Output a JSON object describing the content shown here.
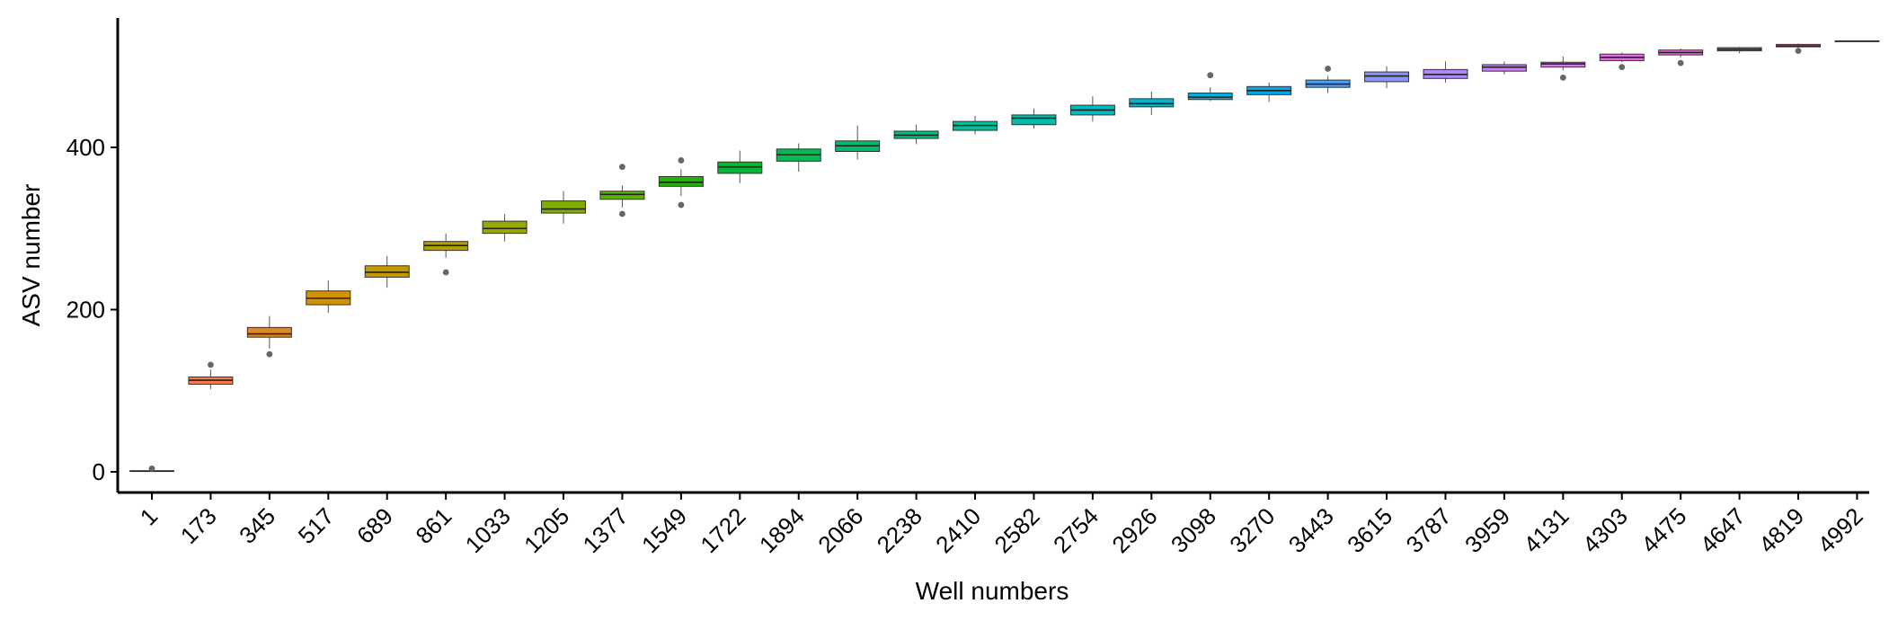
{
  "chart_data": {
    "type": "box",
    "xlabel": "Well numbers",
    "ylabel": "ASV number",
    "y_ticks": [
      0,
      200,
      400
    ],
    "ylim": [
      -25,
      560
    ],
    "grid": false,
    "legend": "none",
    "categories": [
      "1",
      "173",
      "345",
      "517",
      "689",
      "861",
      "1033",
      "1205",
      "1377",
      "1549",
      "1722",
      "1894",
      "2066",
      "2238",
      "2410",
      "2582",
      "2754",
      "2926",
      "3098",
      "3270",
      "3443",
      "3615",
      "3787",
      "3959",
      "4131",
      "4303",
      "4475",
      "4647",
      "4819",
      "4992"
    ],
    "boxes": [
      {
        "min": 1,
        "q1": 1,
        "median": 1,
        "q3": 1,
        "max": 2,
        "outliers": [
          4
        ],
        "color": "#F8766D"
      },
      {
        "min": 102,
        "q1": 108,
        "median": 113,
        "q3": 117,
        "max": 126,
        "outliers": [
          132
        ],
        "color": "#F07F4B"
      },
      {
        "min": 152,
        "q1": 166,
        "median": 170,
        "q3": 178,
        "max": 192,
        "outliers": [
          145
        ],
        "color": "#E2871F"
      },
      {
        "min": 196,
        "q1": 206,
        "median": 214,
        "q3": 223,
        "max": 236,
        "outliers": [],
        "color": "#D39200"
      },
      {
        "min": 227,
        "q1": 240,
        "median": 246,
        "q3": 254,
        "max": 266,
        "outliers": [],
        "color": "#C29A00"
      },
      {
        "min": 264,
        "q1": 273,
        "median": 279,
        "q3": 284,
        "max": 294,
        "outliers": [
          246
        ],
        "color": "#AFA100"
      },
      {
        "min": 284,
        "q1": 294,
        "median": 300,
        "q3": 309,
        "max": 318,
        "outliers": [],
        "color": "#99A800"
      },
      {
        "min": 306,
        "q1": 319,
        "median": 324,
        "q3": 334,
        "max": 346,
        "outliers": [],
        "color": "#7FAE00"
      },
      {
        "min": 326,
        "q1": 336,
        "median": 342,
        "q3": 346,
        "max": 353,
        "outliers": [
          376,
          318
        ],
        "color": "#5EB300"
      },
      {
        "min": 340,
        "q1": 352,
        "median": 357,
        "q3": 364,
        "max": 373,
        "outliers": [
          384,
          329
        ],
        "color": "#1EB600"
      },
      {
        "min": 356,
        "q1": 368,
        "median": 376,
        "q3": 382,
        "max": 396,
        "outliers": [],
        "color": "#00B933"
      },
      {
        "min": 370,
        "q1": 383,
        "median": 391,
        "q3": 398,
        "max": 405,
        "outliers": [],
        "color": "#00BB52"
      },
      {
        "min": 385,
        "q1": 395,
        "median": 402,
        "q3": 408,
        "max": 427,
        "outliers": [],
        "color": "#00BD6B"
      },
      {
        "min": 404,
        "q1": 411,
        "median": 415,
        "q3": 420,
        "max": 428,
        "outliers": [],
        "color": "#00BE82"
      },
      {
        "min": 416,
        "q1": 421,
        "median": 427,
        "q3": 432,
        "max": 439,
        "outliers": [],
        "color": "#00BF97"
      },
      {
        "min": 423,
        "q1": 428,
        "median": 436,
        "q3": 440,
        "max": 448,
        "outliers": [],
        "color": "#00BEAB"
      },
      {
        "min": 432,
        "q1": 440,
        "median": 446,
        "q3": 452,
        "max": 463,
        "outliers": [],
        "color": "#00BBBE"
      },
      {
        "min": 440,
        "q1": 450,
        "median": 454,
        "q3": 460,
        "max": 469,
        "outliers": [],
        "color": "#00B6CF"
      },
      {
        "min": 457,
        "q1": 459,
        "median": 462,
        "q3": 467,
        "max": 474,
        "outliers": [
          489
        ],
        "color": "#00B0DF"
      },
      {
        "min": 456,
        "q1": 465,
        "median": 470,
        "q3": 475,
        "max": 480,
        "outliers": [],
        "color": "#00A8EE"
      },
      {
        "min": 467,
        "q1": 474,
        "median": 478,
        "q3": 483,
        "max": 488,
        "outliers": [
          497
        ],
        "color": "#4A9FFA"
      },
      {
        "min": 473,
        "q1": 481,
        "median": 488,
        "q3": 493,
        "max": 500,
        "outliers": [],
        "color": "#8C94FF"
      },
      {
        "min": 480,
        "q1": 485,
        "median": 490,
        "q3": 496,
        "max": 506,
        "outliers": [],
        "color": "#B189FF"
      },
      {
        "min": 490,
        "q1": 494,
        "median": 499,
        "q3": 502,
        "max": 506,
        "outliers": [],
        "color": "#CB7CFF"
      },
      {
        "min": 495,
        "q1": 499,
        "median": 503,
        "q3": 505,
        "max": 512,
        "outliers": [
          486
        ],
        "color": "#DE71F5"
      },
      {
        "min": 505,
        "q1": 507,
        "median": 511,
        "q3": 515,
        "max": 517,
        "outliers": [
          499
        ],
        "color": "#EC69EB"
      },
      {
        "min": 511,
        "q1": 514,
        "median": 517,
        "q3": 520,
        "max": 522,
        "outliers": [
          504
        ],
        "color": "#F564DC"
      },
      {
        "min": 516,
        "q1": 519,
        "median": 521,
        "q3": 523,
        "max": 524,
        "outliers": [],
        "color": "#FC61C9"
      },
      {
        "min": 523,
        "q1": 524,
        "median": 525,
        "q3": 527,
        "max": 528,
        "outliers": [
          519
        ],
        "color": "#FF62B4"
      },
      {
        "min": 531,
        "q1": 531,
        "median": 531,
        "q3": 531,
        "max": 531,
        "outliers": [],
        "color": "#FF659F"
      }
    ]
  }
}
